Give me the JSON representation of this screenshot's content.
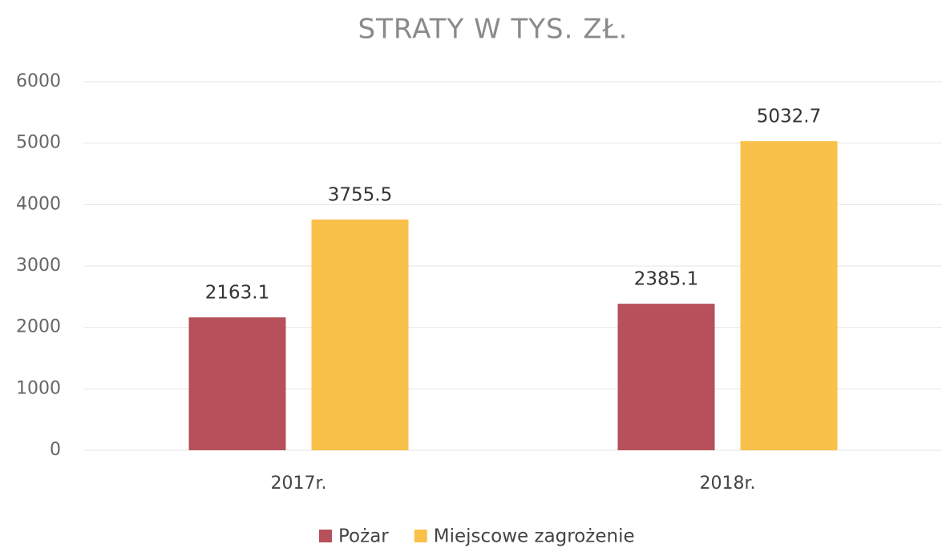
{
  "chart_data": {
    "type": "bar",
    "title": "STRATY W TYS. ZŁ.",
    "categories": [
      "2017r.",
      "2018r."
    ],
    "series": [
      {
        "name": "Pożar",
        "color": "#b7505a",
        "values": [
          2163.1,
          2385.1
        ]
      },
      {
        "name": "Miejscowe zagrożenie",
        "color": "#f9c04a",
        "values": [
          3755.5,
          5032.7
        ]
      }
    ],
    "ylim": [
      0,
      6000
    ],
    "yticks": [
      0,
      1000,
      2000,
      3000,
      4000,
      5000,
      6000
    ],
    "grid": true,
    "legend": "bottom"
  }
}
